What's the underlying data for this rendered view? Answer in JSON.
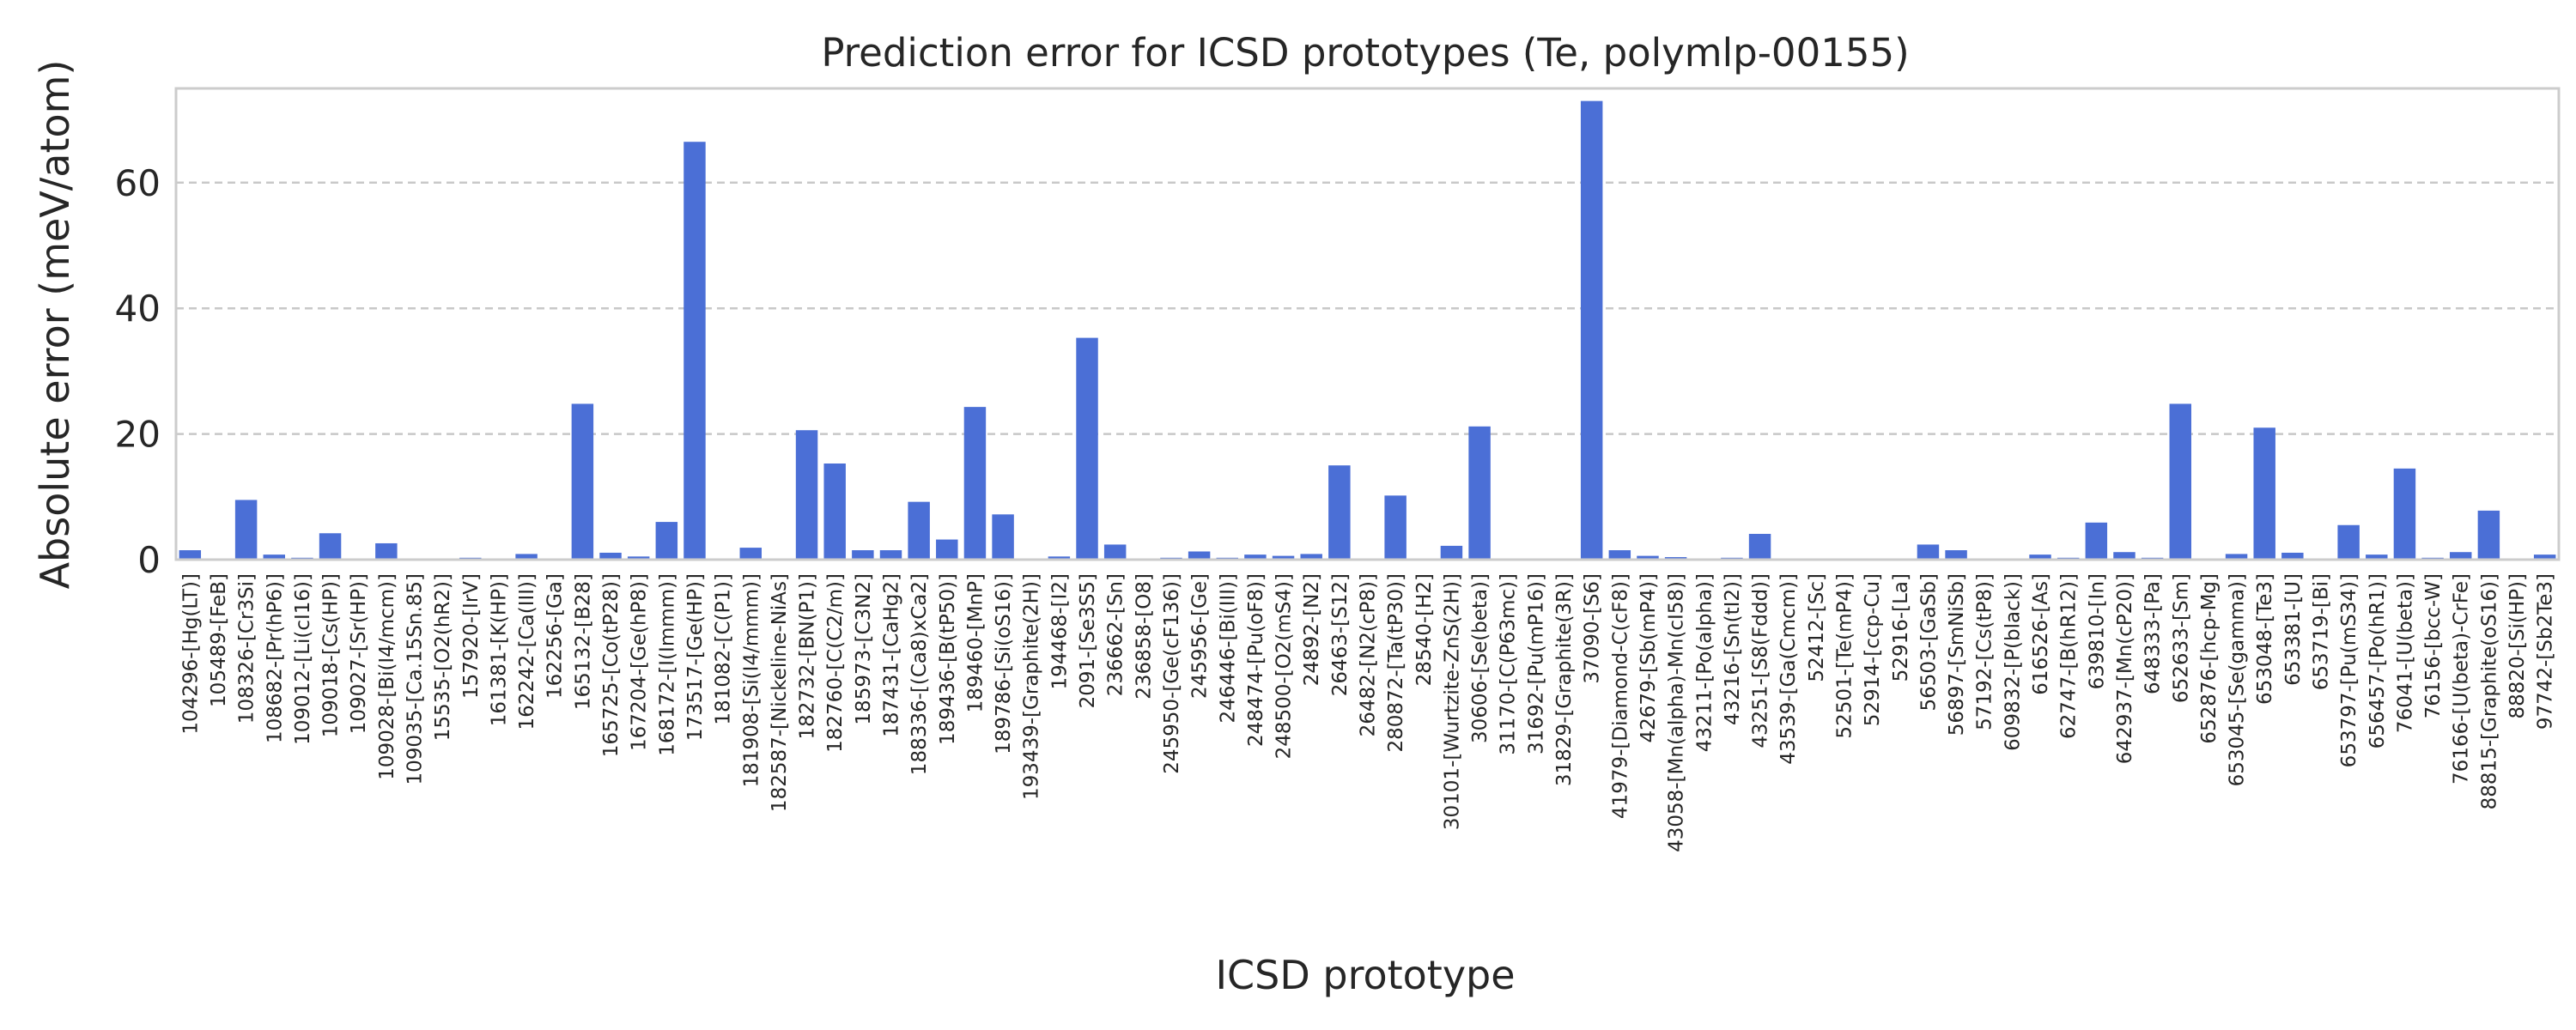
{
  "chart_data": {
    "type": "bar",
    "title": "Prediction error for ICSD prototypes (Te, polymlp-00155)",
    "xlabel": "ICSD prototype",
    "ylabel": "Absolute error (meV/atom)",
    "ylim": [
      0,
      75
    ],
    "yticks": [
      0,
      20,
      40,
      60
    ],
    "grid": "horizontal dashed",
    "bar_color": "#4b6fd6",
    "categories": [
      "104296-[Hg(LT)]",
      "105489-[FeB]",
      "108326-[Cr3Si]",
      "108682-[Pr(hP6)]",
      "109012-[Li(cI16)]",
      "109018-[Cs(HP)]",
      "109027-[Sr(HP)]",
      "109028-[Bi(I4/mcm)]",
      "109035-[Ca.15Sn.85]",
      "15535-[O2(hR2)]",
      "157920-[IrV]",
      "161381-[K(HP)]",
      "162242-[Ca(III)]",
      "162256-[Ga]",
      "165132-[B28]",
      "165725-[Co(tP28)]",
      "167204-[Ge(hP8)]",
      "168172-[I(Immm)]",
      "173517-[Ge(HP)]",
      "181082-[C(P1)]",
      "181908-[Si(I4/mmm)]",
      "182587-[Nickeline-NiAs]",
      "182732-[BN(P1)]",
      "182760-[C(C2/m)]",
      "185973-[C3N2]",
      "187431-[CaHg2]",
      "188336-[(Ca8)xCa2]",
      "189436-[B(tP50)]",
      "189460-[MnP]",
      "189786-[Si(oS16)]",
      "193439-[Graphite(2H)]",
      "194468-[I2]",
      "2091-[Se3S5]",
      "236662-[Sn]",
      "236858-[O8]",
      "245950-[Ge(cF136)]",
      "245956-[Ge]",
      "246446-[Bi(III)]",
      "248474-[Pu(oF8)]",
      "248500-[O2(mS4)]",
      "24892-[N2]",
      "26463-[S12]",
      "26482-[N2(cP8)]",
      "280872-[Ta(tP30)]",
      "28540-[H2]",
      "30101-[Wurtzite-ZnS(2H)]",
      "30606-[Se(beta)]",
      "31170-[C(P63mc)]",
      "31692-[Pu(mP16)]",
      "31829-[Graphite(3R)]",
      "37090-[S6]",
      "41979-[Diamond-C(cF8)]",
      "42679-[Sb(mP4)]",
      "43058-[Mn(alpha)-Mn(cI58)]",
      "43211-[Po(alpha)]",
      "43216-[Sn(tI2)]",
      "43251-[S8(Fddd)]",
      "43539-[Ga(Cmcm)]",
      "52412-[Sc]",
      "52501-[Te(mP4)]",
      "52914-[ccp-Cu]",
      "52916-[La]",
      "56503-[GaSb]",
      "56897-[SmNiSb]",
      "57192-[Cs(tP8)]",
      "609832-[P(black)]",
      "616526-[As]",
      "62747-[B(hR12)]",
      "639810-[In]",
      "642937-[Mn(cP20)]",
      "648333-[Pa]",
      "652633-[Sm]",
      "652876-[hcp-Mg]",
      "653045-[Se(gamma)]",
      "653048-[Te3]",
      "653381-[U]",
      "653719-[Bi]",
      "653797-[Pu(mS34)]",
      "656457-[Po(hR1)]",
      "76041-[U(beta)]",
      "76156-[bcc-W]",
      "76166-[U(beta)-CrFe]",
      "88815-[Graphite(oS16)]",
      "88820-[Si(HP)]",
      "97742-[Sb2Te3]"
    ],
    "values": [
      1.5,
      0.1,
      9.5,
      0.8,
      0.3,
      4.2,
      0.1,
      2.6,
      0.1,
      0.1,
      0.3,
      0.1,
      0.9,
      0.1,
      24.8,
      1.1,
      0.5,
      6.0,
      66.5,
      0.1,
      1.9,
      0.1,
      20.6,
      15.3,
      1.5,
      1.5,
      9.2,
      3.2,
      24.3,
      7.2,
      0.1,
      0.5,
      35.3,
      2.4,
      0.1,
      0.3,
      1.3,
      0.3,
      0.8,
      0.6,
      0.9,
      15.0,
      0.1,
      10.2,
      0.1,
      2.2,
      21.2,
      0.1,
      0.1,
      0.1,
      73.0,
      1.5,
      0.6,
      0.4,
      0.1,
      0.3,
      4.1,
      0.1,
      0.1,
      0.1,
      0.1,
      0.1,
      2.4,
      1.5,
      0.1,
      0.1,
      0.8,
      0.3,
      5.9,
      1.2,
      0.3,
      24.8,
      0.1,
      0.9,
      21.0,
      1.1,
      0.1,
      5.5,
      0.8,
      14.5,
      0.3,
      1.2,
      7.8,
      0.1,
      0.8
    ]
  }
}
